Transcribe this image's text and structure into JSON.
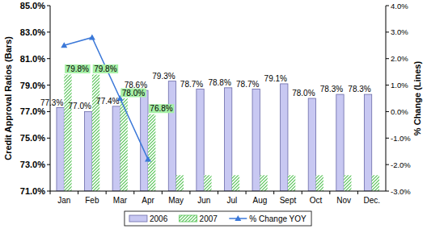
{
  "chart_data": {
    "type": "bar",
    "y_label": "Credit Approval Ratios (Bars)",
    "y2_label": "% Change (Lines)",
    "categories": [
      "Jan",
      "Feb",
      "Mar",
      "Apr",
      "May",
      "Jun",
      "Jul",
      "Aug",
      "Sept",
      "Oct",
      "Nov",
      "Dec."
    ],
    "series": [
      {
        "name": "2006",
        "color": "#c8c8f2",
        "values": [
          77.3,
          77.0,
          77.4,
          78.6,
          79.3,
          78.7,
          78.8,
          78.7,
          79.1,
          78.0,
          78.3,
          78.3
        ],
        "value_labels": [
          "77.3%",
          "77.0%",
          "77.4%",
          "78.6%",
          "79.3%",
          "78.7%",
          "78.8%",
          "78.7%",
          "79.1%",
          "78.0%",
          "78.3%",
          "78.3%"
        ]
      },
      {
        "name": "2007",
        "color": "#55c455",
        "values": [
          79.8,
          79.8,
          78.0,
          76.8,
          72.2,
          72.2,
          72.2,
          72.2,
          72.2,
          72.2,
          72.2,
          72.2
        ],
        "value_labels": [
          "79.8%",
          "79.8%",
          "78.0%",
          "76.8%",
          null,
          null,
          null,
          null,
          null,
          null,
          null,
          null
        ]
      },
      {
        "name": "% Change YOY",
        "type": "line",
        "axis": "y2",
        "color": "#3b78d8",
        "marker": "triangle",
        "values": [
          2.5,
          2.8,
          0.5,
          -1.8,
          null,
          null,
          null,
          null,
          null,
          null,
          null,
          null
        ]
      }
    ],
    "ylim": [
      71,
      85
    ],
    "yticks": [
      {
        "value": 71,
        "label": "71.0%"
      },
      {
        "value": 73,
        "label": "73.0%"
      },
      {
        "value": 75,
        "label": "75.0%"
      },
      {
        "value": 77,
        "label": "77.0%"
      },
      {
        "value": 79,
        "label": "79.0%"
      },
      {
        "value": 81,
        "label": "81.0%"
      },
      {
        "value": 83,
        "label": "83.0%"
      },
      {
        "value": 85,
        "label": "85.0%"
      }
    ],
    "y2lim": [
      -3,
      4
    ],
    "y2ticks": [
      {
        "value": -3,
        "label": "-3.0%"
      },
      {
        "value": -2,
        "label": "-2.0%"
      },
      {
        "value": -1,
        "label": "-1.0%"
      },
      {
        "value": 0,
        "label": "0.0%"
      },
      {
        "value": 1,
        "label": "1.0%"
      },
      {
        "value": 2,
        "label": "2.0%"
      },
      {
        "value": 3,
        "label": "3.0%"
      },
      {
        "value": 4,
        "label": "4.0%"
      }
    ],
    "legend": "bottom",
    "data_labels": true,
    "grid": false
  }
}
